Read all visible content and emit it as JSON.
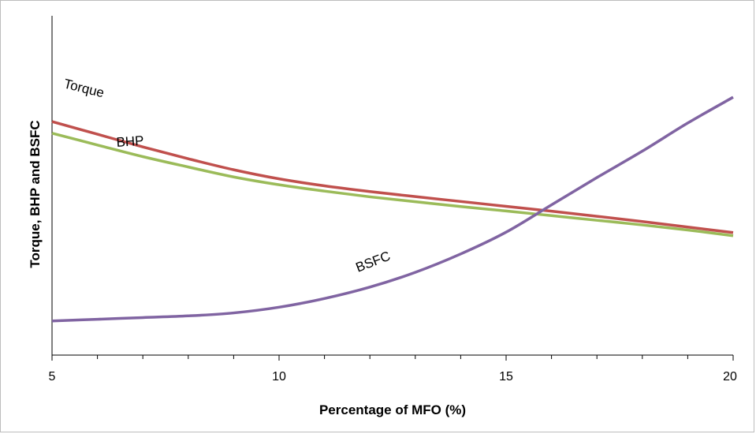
{
  "chart_data": {
    "type": "line",
    "title": "",
    "xlabel": "Percentage of MFO (%)",
    "ylabel": "Torque, BHP and BSFC",
    "xlim": [
      5,
      20
    ],
    "ylim": [
      0,
      100
    ],
    "x_ticks": [
      5,
      10,
      15,
      20
    ],
    "x_minor_step": 1,
    "y_tick_labels_shown": false,
    "grid": false,
    "legend": "none (inline labels)",
    "series": [
      {
        "name": "Torque",
        "color": "#c0504d",
        "x": [
          5,
          6,
          7,
          8,
          9,
          10,
          11,
          12,
          13,
          14,
          15,
          16,
          17,
          18,
          19,
          20
        ],
        "y": [
          98.5,
          92.5,
          86.5,
          80.9,
          75.7,
          71.4,
          68.1,
          65.4,
          63.0,
          60.7,
          58.4,
          56.1,
          53.7,
          51.2,
          48.6,
          46.0
        ]
      },
      {
        "name": "BHP",
        "color": "#9bbb59",
        "x": [
          5,
          6,
          7,
          8,
          9,
          10,
          11,
          12,
          13,
          14,
          15,
          16,
          17,
          18,
          19,
          20
        ],
        "y": [
          93.0,
          87.4,
          81.9,
          77.0,
          72.3,
          68.6,
          65.6,
          62.9,
          60.6,
          58.3,
          56.2,
          54.0,
          51.8,
          49.6,
          47.2,
          44.5
        ]
      },
      {
        "name": "BSFC",
        "color": "#8064a2",
        "x": [
          5,
          6,
          7,
          8,
          9,
          10,
          11,
          12,
          13,
          14,
          15,
          16,
          17,
          18,
          19,
          20
        ],
        "y": [
          4.2,
          5.0,
          5.8,
          6.6,
          8.0,
          10.7,
          14.8,
          20.2,
          27.2,
          35.9,
          46.2,
          59.1,
          72.0,
          84.5,
          97.8,
          110.0
        ]
      }
    ],
    "annotations": [
      {
        "text": "Torque",
        "series": "Torque"
      },
      {
        "text": "BHP",
        "series": "BHP"
      },
      {
        "text": "BSFC",
        "series": "BSFC"
      }
    ]
  }
}
